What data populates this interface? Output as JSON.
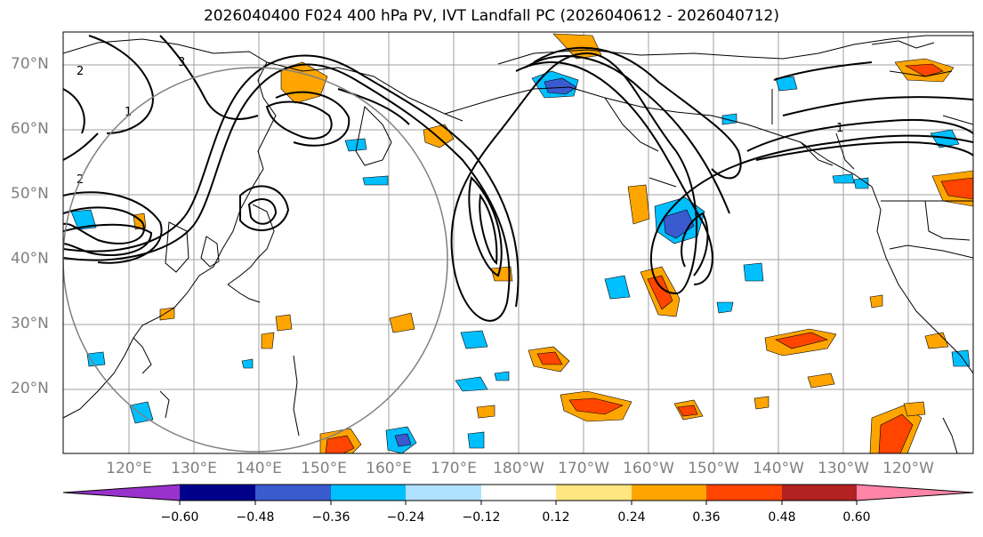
{
  "title": "2026040400 F024 400 hPa PV, IVT Landfall PC (2026040612 - 2026040712)",
  "map": {
    "lat_labels": [
      "70°N",
      "60°N",
      "50°N",
      "40°N",
      "30°N",
      "20°N"
    ],
    "lon_labels": [
      "120°E",
      "130°E",
      "140°E",
      "150°E",
      "160°E",
      "170°E",
      "180°W",
      "170°W",
      "160°W",
      "150°W",
      "140°W",
      "130°W",
      "120°W"
    ],
    "contour_labels": [
      "2",
      "3",
      "1",
      "2",
      "1"
    ],
    "colors": {
      "land_outline": "#000000",
      "grid": "#a0a0a0",
      "circle": "#808080"
    }
  },
  "colorbar": {
    "tick_labels": [
      "−0.60",
      "−0.48",
      "−0.36",
      "−0.24",
      "−0.12",
      "0.12",
      "0.24",
      "0.36",
      "0.48",
      "0.60"
    ],
    "bins": [
      {
        "color": "#9932cc"
      },
      {
        "color": "#00008b"
      },
      {
        "color": "#3a5bd0"
      },
      {
        "color": "#00bfff"
      },
      {
        "color": "#b0e0ff"
      },
      {
        "color": "#ffffff"
      },
      {
        "color": "#ffe680"
      },
      {
        "color": "#ffa500"
      },
      {
        "color": "#ff4500"
      },
      {
        "color": "#b22222"
      },
      {
        "color": "#ff85a8"
      }
    ]
  }
}
